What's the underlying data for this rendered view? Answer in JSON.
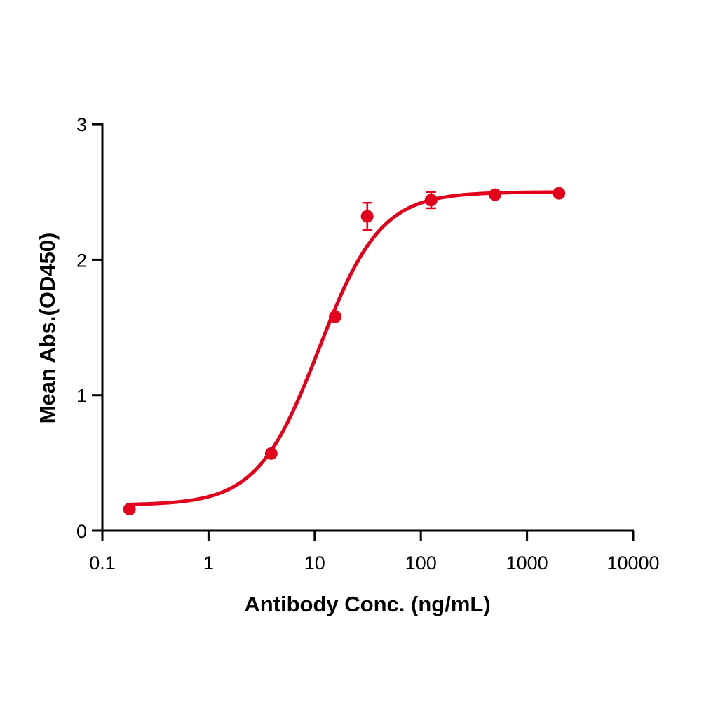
{
  "chart_data": {
    "type": "scatter",
    "title": "",
    "xlabel": "Antibody Conc. (ng/mL)",
    "ylabel": "Mean Abs.(OD450)",
    "x_scale": "log",
    "xlim": [
      0.1,
      10000
    ],
    "ylim": [
      0,
      3
    ],
    "x_ticks": [
      "0.1",
      "1",
      "10",
      "100",
      "1000",
      "10000"
    ],
    "y_ticks": [
      "0",
      "1",
      "2",
      "3"
    ],
    "grid": false,
    "legend": null,
    "color": "#e3001b",
    "series": [
      {
        "name": "Mean Abs.",
        "x": [
          0.18,
          3.9,
          15.6,
          31.25,
          125,
          500,
          2000
        ],
        "y": [
          0.16,
          0.57,
          1.58,
          2.32,
          2.44,
          2.48,
          2.49
        ],
        "error": [
          0.0,
          0.0,
          0.0,
          0.1,
          0.06,
          0.0,
          0.0
        ]
      }
    ],
    "fit": {
      "type": "4PL",
      "bottom": 0.19,
      "top": 2.5,
      "ec50": 11,
      "hill": 1.5
    }
  }
}
